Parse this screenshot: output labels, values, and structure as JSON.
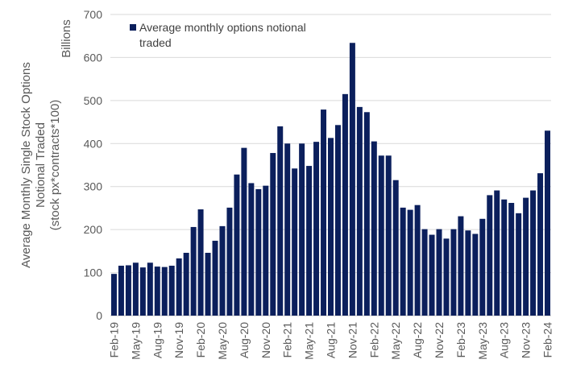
{
  "chart_data": {
    "type": "bar",
    "ylabel_lines": [
      "Average Monthly Single Stock Options",
      "Notional Traded",
      "(stock px*contracts*100)"
    ],
    "unit_label": "Billions",
    "legend": {
      "label_lines": [
        "Average monthly options notional",
        "traded"
      ],
      "placement": "top-left"
    },
    "ylim": [
      0,
      700
    ],
    "yticks": [
      0,
      100,
      200,
      300,
      400,
      500,
      600,
      700
    ],
    "grid": true,
    "colors": {
      "bar": "#0b1f5c",
      "grid": "#d9d9d9",
      "text": "#595959"
    },
    "categories": [
      "Feb-19",
      "Mar-19",
      "Apr-19",
      "May-19",
      "Jun-19",
      "Jul-19",
      "Aug-19",
      "Sep-19",
      "Oct-19",
      "Nov-19",
      "Dec-19",
      "Jan-20",
      "Feb-20",
      "Mar-20",
      "Apr-20",
      "May-20",
      "Jun-20",
      "Jul-20",
      "Aug-20",
      "Sep-20",
      "Oct-20",
      "Nov-20",
      "Dec-20",
      "Jan-21",
      "Feb-21",
      "Mar-21",
      "Apr-21",
      "May-21",
      "Jun-21",
      "Jul-21",
      "Aug-21",
      "Sep-21",
      "Oct-21",
      "Nov-21",
      "Dec-21",
      "Jan-22",
      "Feb-22",
      "Mar-22",
      "Apr-22",
      "May-22",
      "Jun-22",
      "Jul-22",
      "Aug-22",
      "Sep-22",
      "Oct-22",
      "Nov-22",
      "Dec-22",
      "Jan-23",
      "Feb-23",
      "Mar-23",
      "Apr-23",
      "May-23",
      "Jun-23",
      "Jul-23",
      "Aug-23",
      "Sep-23",
      "Oct-23",
      "Nov-23",
      "Dec-23",
      "Jan-24",
      "Feb-24"
    ],
    "tick_labels": [
      "Feb-19",
      "May-19",
      "Aug-19",
      "Nov-19",
      "Feb-20",
      "May-20",
      "Aug-20",
      "Nov-20",
      "Feb-21",
      "May-21",
      "Aug-21",
      "Nov-21",
      "Feb-22",
      "May-22",
      "Aug-22",
      "Nov-22",
      "Feb-23",
      "May-23",
      "Aug-23",
      "Nov-23",
      "Feb-24"
    ],
    "series": [
      {
        "values": [
          97,
          116,
          117,
          123,
          112,
          123,
          114,
          113,
          116,
          133,
          146,
          206,
          247,
          146,
          174,
          208,
          251,
          328,
          390,
          308,
          294,
          302,
          378,
          440,
          400,
          342,
          400,
          348,
          404,
          479,
          413,
          443,
          515,
          634,
          485,
          473,
          405,
          372,
          372,
          315,
          251,
          246,
          257,
          201,
          188,
          201,
          179,
          201,
          231,
          198,
          190,
          225,
          280,
          291,
          270,
          262,
          238,
          274,
          291,
          331,
          430
        ]
      }
    ]
  }
}
